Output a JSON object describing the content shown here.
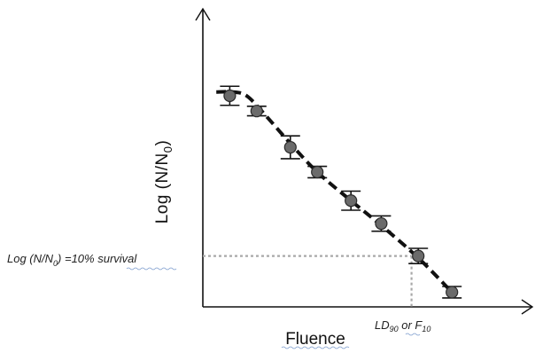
{
  "chart_data": {
    "type": "scatter",
    "title": "",
    "xlabel": "Fluence",
    "ylabel_main": "Log (N/N",
    "ylabel_sub": "0",
    "ylabel_close": ")",
    "xlim": [
      0,
      10
    ],
    "ylim": [
      -1.15,
      0.25
    ],
    "grid": false,
    "ticks_shown": false,
    "x": [
      0.8,
      1.6,
      2.6,
      3.4,
      4.4,
      5.3,
      6.4,
      7.4
    ],
    "y": [
      0.0,
      -0.08,
      -0.27,
      -0.4,
      -0.55,
      -0.67,
      -0.84,
      -1.03
    ],
    "yerr": [
      0.05,
      0.025,
      0.06,
      0.03,
      0.05,
      0.04,
      0.04,
      0.03
    ],
    "fit_curve": {
      "style": "dashed",
      "x": [
        0.4,
        0.9,
        1.3,
        1.8,
        2.6,
        3.4,
        4.4,
        5.3,
        6.4,
        7.4
      ],
      "y": [
        0.02,
        0.02,
        0.0,
        -0.09,
        -0.25,
        -0.4,
        -0.55,
        -0.68,
        -0.85,
        -1.03
      ]
    },
    "reference": {
      "y": -0.84,
      "x": 6.2,
      "label_y": {
        "prefix": "Log (N/N",
        "sub": "0",
        "suffix": ") =10% survival"
      },
      "label_x": {
        "part1": "LD",
        "sub1": "90",
        "part2": " or F",
        "sub2": "10"
      }
    },
    "colors": {
      "axis": "#111111",
      "points": "#6b6b6b",
      "fit_line": "#111111",
      "reference_line": "#a9a9a9"
    }
  }
}
